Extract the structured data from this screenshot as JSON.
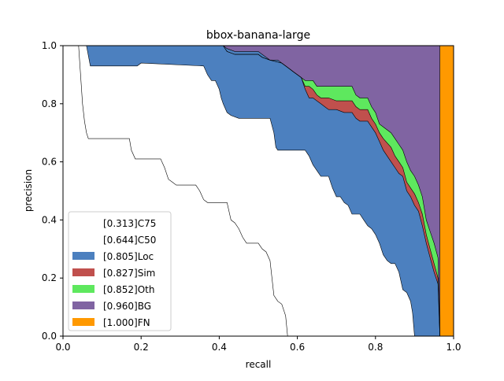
{
  "chart_data": {
    "type": "area",
    "title": "bbox-banana-large",
    "xlabel": "recall",
    "ylabel": "precision",
    "xlim": [
      0,
      1
    ],
    "ylim": [
      0,
      1
    ],
    "xticks": [
      "0.0",
      "0.2",
      "0.4",
      "0.6",
      "0.8",
      "1.0"
    ],
    "yticks": [
      "0.0",
      "0.2",
      "0.4",
      "0.6",
      "0.8",
      "1.0"
    ],
    "grid": false,
    "legend_position": "lower-left",
    "series": [
      {
        "name": "[0.313]C75",
        "color": "#ffffff",
        "points": [
          [
            0,
            1
          ],
          [
            0.04,
            1
          ],
          [
            0.045,
            0.9
          ],
          [
            0.05,
            0.8
          ],
          [
            0.055,
            0.74
          ],
          [
            0.06,
            0.7
          ],
          [
            0.065,
            0.68
          ],
          [
            0.17,
            0.68
          ],
          [
            0.175,
            0.64
          ],
          [
            0.185,
            0.61
          ],
          [
            0.25,
            0.61
          ],
          [
            0.26,
            0.58
          ],
          [
            0.27,
            0.54
          ],
          [
            0.28,
            0.53
          ],
          [
            0.29,
            0.52
          ],
          [
            0.34,
            0.52
          ],
          [
            0.35,
            0.5
          ],
          [
            0.36,
            0.47
          ],
          [
            0.37,
            0.46
          ],
          [
            0.42,
            0.46
          ],
          [
            0.43,
            0.4
          ],
          [
            0.44,
            0.39
          ],
          [
            0.45,
            0.37
          ],
          [
            0.46,
            0.34
          ],
          [
            0.47,
            0.32
          ],
          [
            0.5,
            0.32
          ],
          [
            0.51,
            0.3
          ],
          [
            0.52,
            0.29
          ],
          [
            0.53,
            0.26
          ],
          [
            0.54,
            0.14
          ],
          [
            0.55,
            0.12
          ],
          [
            0.56,
            0.11
          ],
          [
            0.57,
            0.07
          ],
          [
            0.575,
            0
          ],
          [
            1,
            0
          ]
        ]
      },
      {
        "name": "[0.644]C50",
        "color": "#ffffff",
        "points": [
          [
            0,
            1
          ],
          [
            0.06,
            1
          ],
          [
            0.07,
            0.93
          ],
          [
            0.19,
            0.93
          ],
          [
            0.2,
            0.94
          ],
          [
            0.36,
            0.93
          ],
          [
            0.37,
            0.9
          ],
          [
            0.38,
            0.88
          ],
          [
            0.39,
            0.88
          ],
          [
            0.4,
            0.85
          ],
          [
            0.405,
            0.82
          ],
          [
            0.41,
            0.8
          ],
          [
            0.42,
            0.77
          ],
          [
            0.43,
            0.76
          ],
          [
            0.45,
            0.75
          ],
          [
            0.53,
            0.75
          ],
          [
            0.54,
            0.7
          ],
          [
            0.545,
            0.65
          ],
          [
            0.55,
            0.64
          ],
          [
            0.62,
            0.64
          ],
          [
            0.63,
            0.62
          ],
          [
            0.64,
            0.59
          ],
          [
            0.65,
            0.57
          ],
          [
            0.66,
            0.55
          ],
          [
            0.68,
            0.55
          ],
          [
            0.69,
            0.51
          ],
          [
            0.7,
            0.48
          ],
          [
            0.71,
            0.48
          ],
          [
            0.72,
            0.46
          ],
          [
            0.73,
            0.45
          ],
          [
            0.74,
            0.42
          ],
          [
            0.76,
            0.42
          ],
          [
            0.77,
            0.4
          ],
          [
            0.78,
            0.38
          ],
          [
            0.79,
            0.37
          ],
          [
            0.8,
            0.35
          ],
          [
            0.81,
            0.32
          ],
          [
            0.82,
            0.28
          ],
          [
            0.83,
            0.26
          ],
          [
            0.84,
            0.25
          ],
          [
            0.85,
            0.25
          ],
          [
            0.86,
            0.22
          ],
          [
            0.87,
            0.16
          ],
          [
            0.88,
            0.15
          ],
          [
            0.89,
            0.12
          ],
          [
            0.895,
            0.08
          ],
          [
            0.9,
            0
          ],
          [
            1,
            0
          ]
        ]
      },
      {
        "name": "[0.805]Loc",
        "color": "#4c80bf",
        "points": [
          [
            0,
            1
          ],
          [
            0.41,
            1
          ],
          [
            0.42,
            0.99
          ],
          [
            0.44,
            0.98
          ],
          [
            0.5,
            0.98
          ],
          [
            0.51,
            0.97
          ],
          [
            0.52,
            0.96
          ],
          [
            0.53,
            0.95
          ],
          [
            0.55,
            0.95
          ],
          [
            0.56,
            0.94
          ],
          [
            0.57,
            0.93
          ],
          [
            0.58,
            0.92
          ],
          [
            0.59,
            0.91
          ],
          [
            0.6,
            0.9
          ],
          [
            0.61,
            0.89
          ],
          [
            0.62,
            0.85
          ],
          [
            0.63,
            0.82
          ],
          [
            0.64,
            0.82
          ],
          [
            0.65,
            0.81
          ],
          [
            0.66,
            0.8
          ],
          [
            0.67,
            0.79
          ],
          [
            0.68,
            0.78
          ],
          [
            0.7,
            0.78
          ],
          [
            0.72,
            0.77
          ],
          [
            0.74,
            0.77
          ],
          [
            0.75,
            0.75
          ],
          [
            0.76,
            0.74
          ],
          [
            0.78,
            0.74
          ],
          [
            0.79,
            0.72
          ],
          [
            0.8,
            0.7
          ],
          [
            0.81,
            0.67
          ],
          [
            0.82,
            0.64
          ],
          [
            0.84,
            0.6
          ],
          [
            0.85,
            0.58
          ],
          [
            0.86,
            0.56
          ],
          [
            0.87,
            0.55
          ],
          [
            0.88,
            0.5
          ],
          [
            0.89,
            0.48
          ],
          [
            0.9,
            0.45
          ],
          [
            0.91,
            0.43
          ],
          [
            0.92,
            0.38
          ],
          [
            0.93,
            0.32
          ],
          [
            0.94,
            0.27
          ],
          [
            0.95,
            0.22
          ],
          [
            0.96,
            0.18
          ],
          [
            0.965,
            0
          ],
          [
            1,
            0
          ]
        ]
      },
      {
        "name": "[0.827]Sim",
        "color": "#c0504d",
        "points": [
          [
            0,
            1
          ],
          [
            0.41,
            1
          ],
          [
            0.42,
            0.98
          ],
          [
            0.44,
            0.97
          ],
          [
            0.5,
            0.97
          ],
          [
            0.51,
            0.96
          ],
          [
            0.53,
            0.95
          ],
          [
            0.56,
            0.94
          ],
          [
            0.57,
            0.93
          ],
          [
            0.58,
            0.92
          ],
          [
            0.59,
            0.91
          ],
          [
            0.6,
            0.9
          ],
          [
            0.61,
            0.89
          ],
          [
            0.62,
            0.86
          ],
          [
            0.63,
            0.86
          ],
          [
            0.64,
            0.85
          ],
          [
            0.65,
            0.83
          ],
          [
            0.66,
            0.82
          ],
          [
            0.68,
            0.82
          ],
          [
            0.7,
            0.81
          ],
          [
            0.74,
            0.81
          ],
          [
            0.75,
            0.79
          ],
          [
            0.76,
            0.78
          ],
          [
            0.78,
            0.78
          ],
          [
            0.79,
            0.75
          ],
          [
            0.8,
            0.73
          ],
          [
            0.81,
            0.7
          ],
          [
            0.82,
            0.68
          ],
          [
            0.84,
            0.65
          ],
          [
            0.85,
            0.62
          ],
          [
            0.86,
            0.6
          ],
          [
            0.87,
            0.58
          ],
          [
            0.88,
            0.53
          ],
          [
            0.89,
            0.51
          ],
          [
            0.9,
            0.49
          ],
          [
            0.91,
            0.46
          ],
          [
            0.92,
            0.42
          ],
          [
            0.93,
            0.35
          ],
          [
            0.94,
            0.3
          ],
          [
            0.95,
            0.25
          ],
          [
            0.96,
            0.2
          ],
          [
            0.965,
            0
          ],
          [
            1,
            0
          ]
        ]
      },
      {
        "name": "[0.852]Oth",
        "color": "#5ee85e",
        "points": [
          [
            0,
            1
          ],
          [
            0.41,
            1
          ],
          [
            0.42,
            0.98
          ],
          [
            0.44,
            0.97
          ],
          [
            0.5,
            0.97
          ],
          [
            0.51,
            0.96
          ],
          [
            0.53,
            0.95
          ],
          [
            0.56,
            0.94
          ],
          [
            0.57,
            0.93
          ],
          [
            0.58,
            0.92
          ],
          [
            0.59,
            0.91
          ],
          [
            0.6,
            0.9
          ],
          [
            0.61,
            0.89
          ],
          [
            0.62,
            0.88
          ],
          [
            0.64,
            0.88
          ],
          [
            0.65,
            0.86
          ],
          [
            0.66,
            0.86
          ],
          [
            0.74,
            0.86
          ],
          [
            0.75,
            0.83
          ],
          [
            0.76,
            0.82
          ],
          [
            0.78,
            0.82
          ],
          [
            0.79,
            0.79
          ],
          [
            0.8,
            0.77
          ],
          [
            0.81,
            0.73
          ],
          [
            0.82,
            0.72
          ],
          [
            0.84,
            0.7
          ],
          [
            0.85,
            0.68
          ],
          [
            0.86,
            0.66
          ],
          [
            0.87,
            0.64
          ],
          [
            0.88,
            0.6
          ],
          [
            0.89,
            0.57
          ],
          [
            0.9,
            0.55
          ],
          [
            0.91,
            0.52
          ],
          [
            0.92,
            0.48
          ],
          [
            0.93,
            0.4
          ],
          [
            0.94,
            0.36
          ],
          [
            0.95,
            0.32
          ],
          [
            0.96,
            0.27
          ],
          [
            0.965,
            0
          ],
          [
            1,
            0
          ]
        ]
      },
      {
        "name": "[0.960]BG",
        "color": "#8064a2",
        "points": [
          [
            0,
            1
          ],
          [
            0.965,
            1
          ],
          [
            0.965,
            0
          ],
          [
            1,
            0
          ]
        ]
      },
      {
        "name": "[1.000]FN",
        "color": "#ff9900",
        "points": [
          [
            0,
            1
          ],
          [
            1,
            1
          ],
          [
            1,
            0
          ]
        ]
      }
    ]
  }
}
